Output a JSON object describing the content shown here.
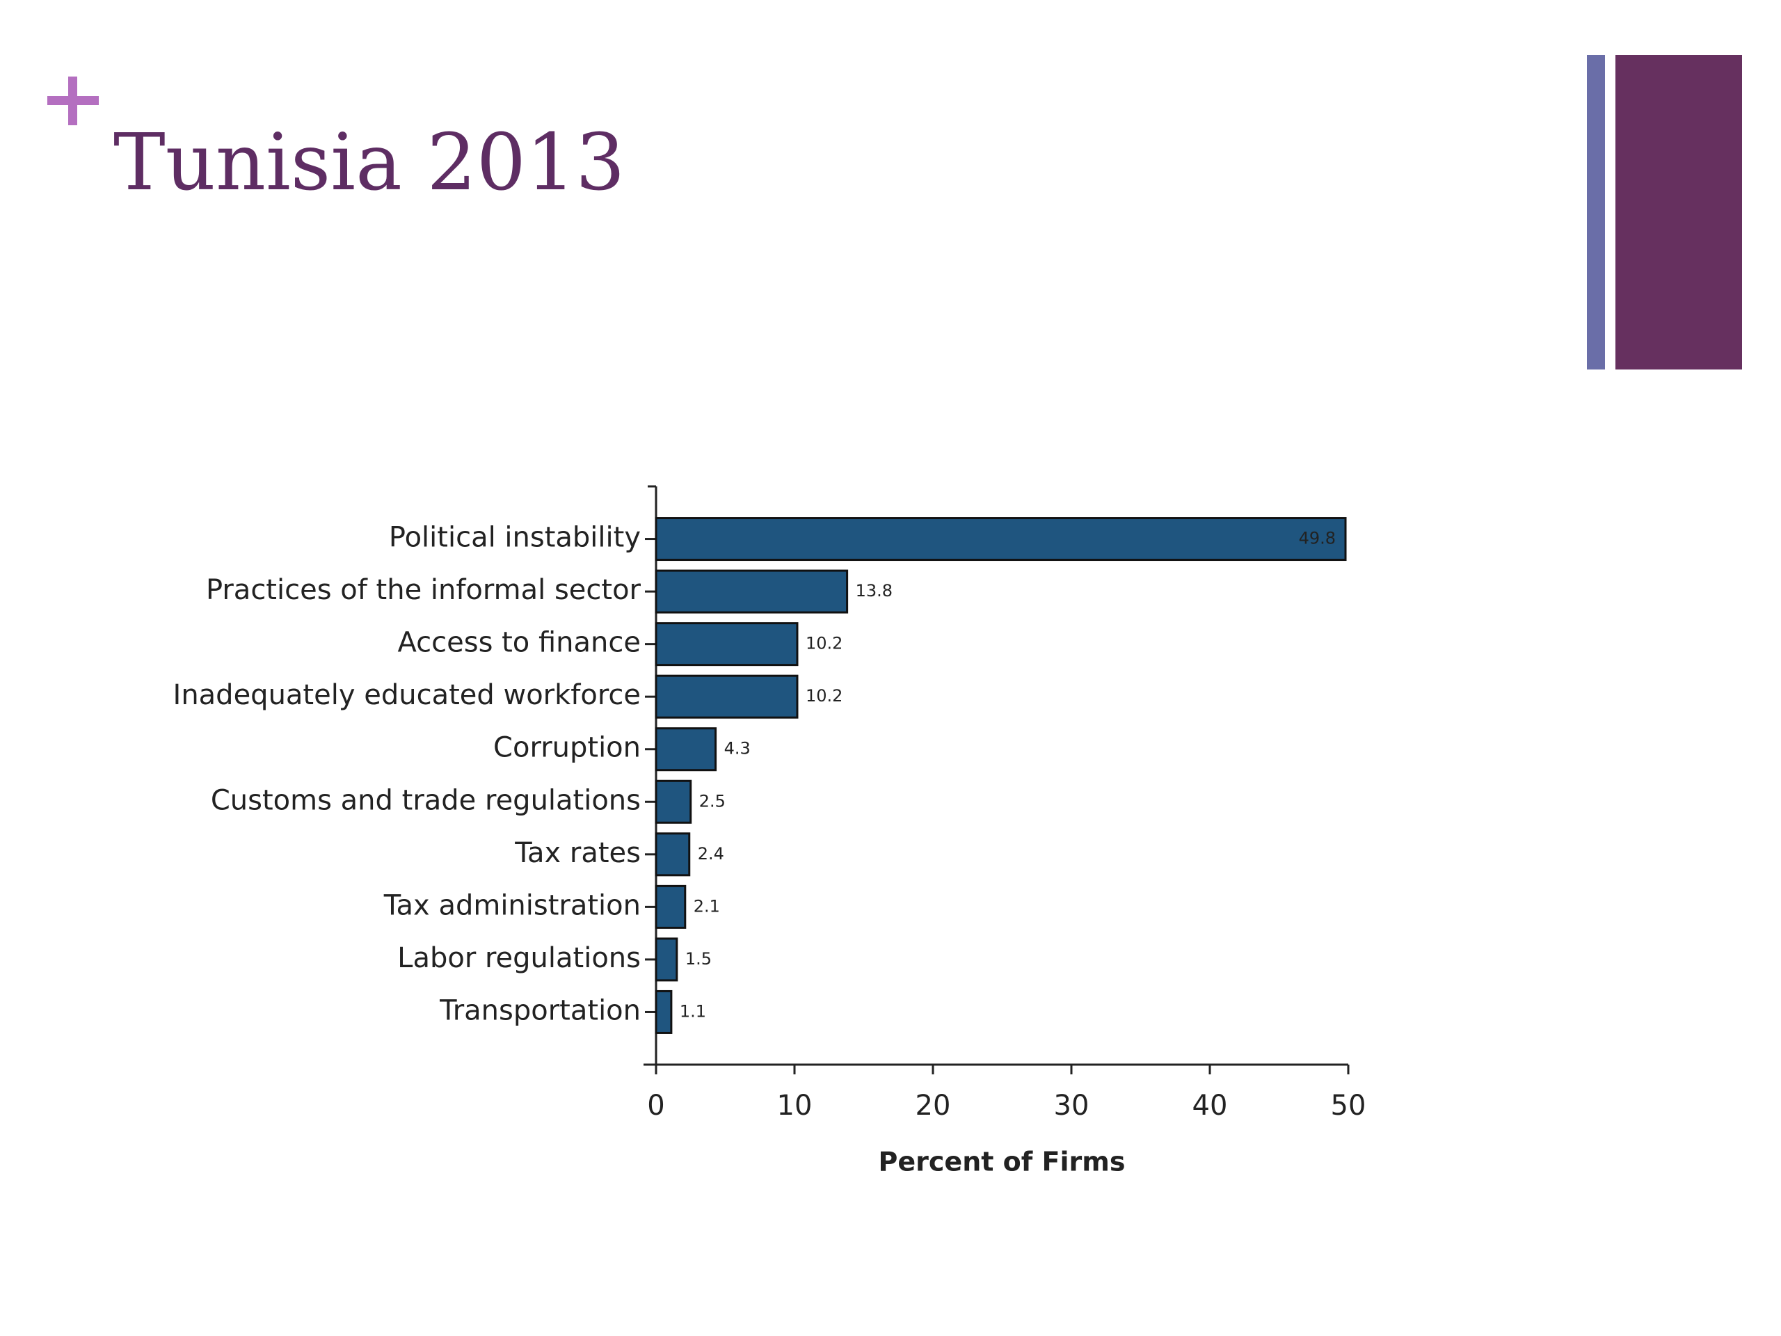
{
  "chart_data": {
    "type": "bar",
    "orientation": "horizontal",
    "title": "Tunisia 2013",
    "categories": [
      "Political instability",
      "Practices of the informal sector",
      "Access to finance",
      "Inadequately educated workforce",
      "Corruption",
      "Customs and trade regulations",
      "Tax rates",
      "Tax administration",
      "Labor regulations",
      "Transportation"
    ],
    "values": [
      49.8,
      13.8,
      10.2,
      10.2,
      4.3,
      2.5,
      2.4,
      2.1,
      1.5,
      1.1
    ],
    "color": "#1f557f",
    "xlim": [
      0,
      50
    ],
    "xticks": [
      0,
      10,
      20,
      30,
      40,
      50
    ],
    "xlabel": "Percent of Firms"
  }
}
